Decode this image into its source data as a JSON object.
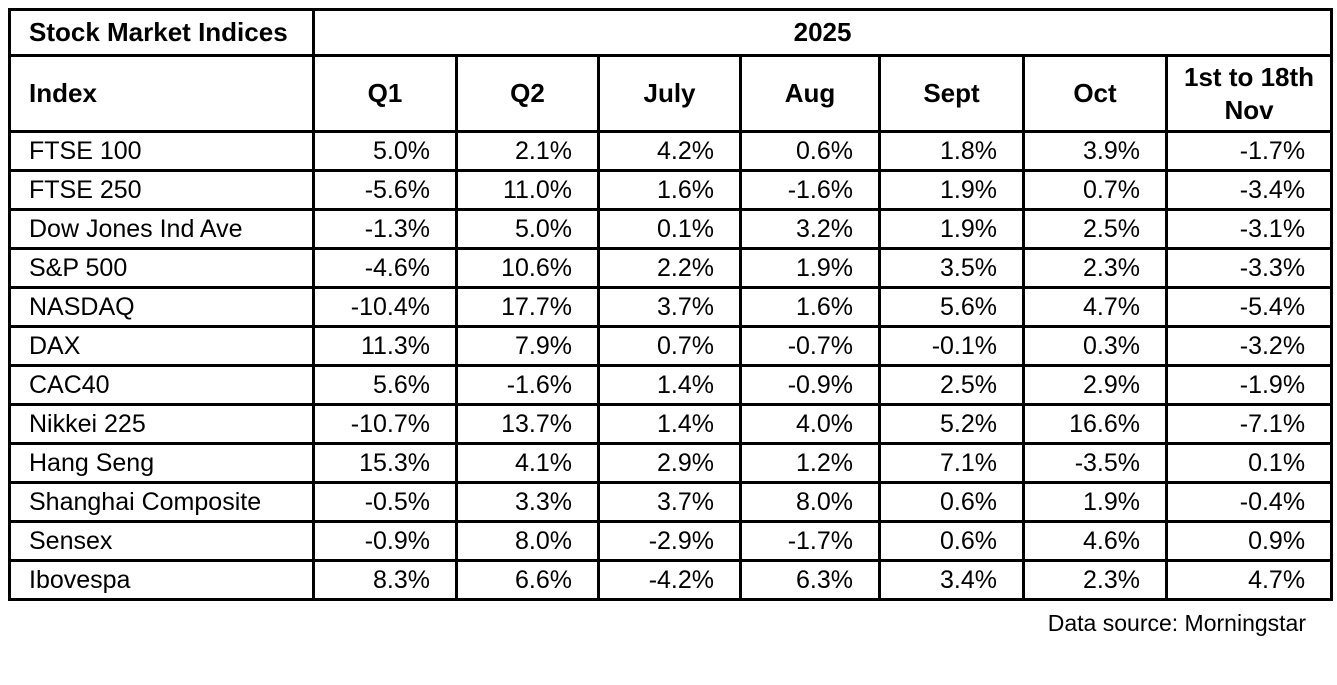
{
  "colors": {
    "border": "#000000",
    "text": "#000000",
    "background": "#ffffff"
  },
  "header": {
    "title": "Stock Market Indices",
    "year": "2025"
  },
  "footer": {
    "source": "Data source: Morningstar"
  },
  "chart_data": {
    "type": "table",
    "title": "Stock Market Indices",
    "year": "2025",
    "columns": [
      "Index",
      "Q1",
      "Q2",
      "July",
      "Aug",
      "Sept",
      "Oct",
      "1st to 18th Nov"
    ],
    "rows": [
      {
        "index": "FTSE 100",
        "values": [
          "5.0%",
          "2.1%",
          "4.2%",
          "0.6%",
          "1.8%",
          "3.9%",
          "-1.7%"
        ]
      },
      {
        "index": "FTSE 250",
        "values": [
          "-5.6%",
          "11.0%",
          "1.6%",
          "-1.6%",
          "1.9%",
          "0.7%",
          "-3.4%"
        ]
      },
      {
        "index": "Dow Jones Ind Ave",
        "values": [
          "-1.3%",
          "5.0%",
          "0.1%",
          "3.2%",
          "1.9%",
          "2.5%",
          "-3.1%"
        ]
      },
      {
        "index": "S&P 500",
        "values": [
          "-4.6%",
          "10.6%",
          "2.2%",
          "1.9%",
          "3.5%",
          "2.3%",
          "-3.3%"
        ]
      },
      {
        "index": "NASDAQ",
        "values": [
          "-10.4%",
          "17.7%",
          "3.7%",
          "1.6%",
          "5.6%",
          "4.7%",
          "-5.4%"
        ]
      },
      {
        "index": "DAX",
        "values": [
          "11.3%",
          "7.9%",
          "0.7%",
          "-0.7%",
          "-0.1%",
          "0.3%",
          "-3.2%"
        ]
      },
      {
        "index": "CAC40",
        "values": [
          "5.6%",
          "-1.6%",
          "1.4%",
          "-0.9%",
          "2.5%",
          "2.9%",
          "-1.9%"
        ]
      },
      {
        "index": "Nikkei 225",
        "values": [
          "-10.7%",
          "13.7%",
          "1.4%",
          "4.0%",
          "5.2%",
          "16.6%",
          "-7.1%"
        ]
      },
      {
        "index": "Hang Seng",
        "values": [
          "15.3%",
          "4.1%",
          "2.9%",
          "1.2%",
          "7.1%",
          "-3.5%",
          "0.1%"
        ]
      },
      {
        "index": "Shanghai Composite",
        "values": [
          "-0.5%",
          "3.3%",
          "3.7%",
          "8.0%",
          "0.6%",
          "1.9%",
          "-0.4%"
        ]
      },
      {
        "index": "Sensex",
        "values": [
          "-0.9%",
          "8.0%",
          "-2.9%",
          "-1.7%",
          "0.6%",
          "4.6%",
          "0.9%"
        ]
      },
      {
        "index": "Ibovespa",
        "values": [
          "8.3%",
          "6.6%",
          "-4.2%",
          "6.3%",
          "3.4%",
          "2.3%",
          "4.7%"
        ]
      }
    ],
    "source": "Data source: Morningstar"
  }
}
